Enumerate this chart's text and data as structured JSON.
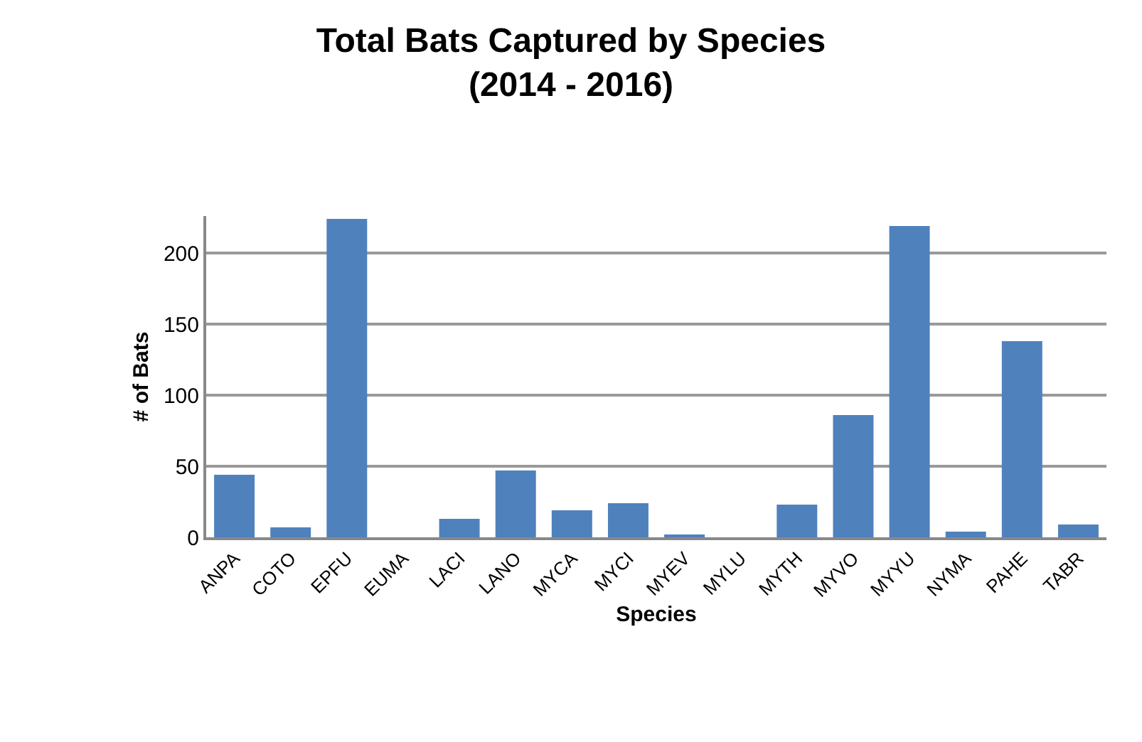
{
  "chart_data": {
    "type": "bar",
    "title": "Total Bats Captured by Species\n(2014 - 2016)",
    "xlabel": "Species",
    "ylabel": "# of Bats",
    "categories": [
      "ANPA",
      "COTO",
      "EPFU",
      "EUMA",
      "LACI",
      "LANO",
      "MYCA",
      "MYCI",
      "MYEV",
      "MYLU",
      "MYTH",
      "MYVO",
      "MYYU",
      "NYMA",
      "PAHE",
      "TABR"
    ],
    "values": [
      44,
      7,
      224,
      0,
      13,
      47,
      19,
      24,
      2,
      0,
      23,
      86,
      219,
      4,
      138,
      9
    ],
    "color": "#4f81bd",
    "ylim": [
      0,
      226
    ],
    "yticks": [
      0,
      50,
      100,
      150,
      200
    ],
    "grid": "y"
  }
}
